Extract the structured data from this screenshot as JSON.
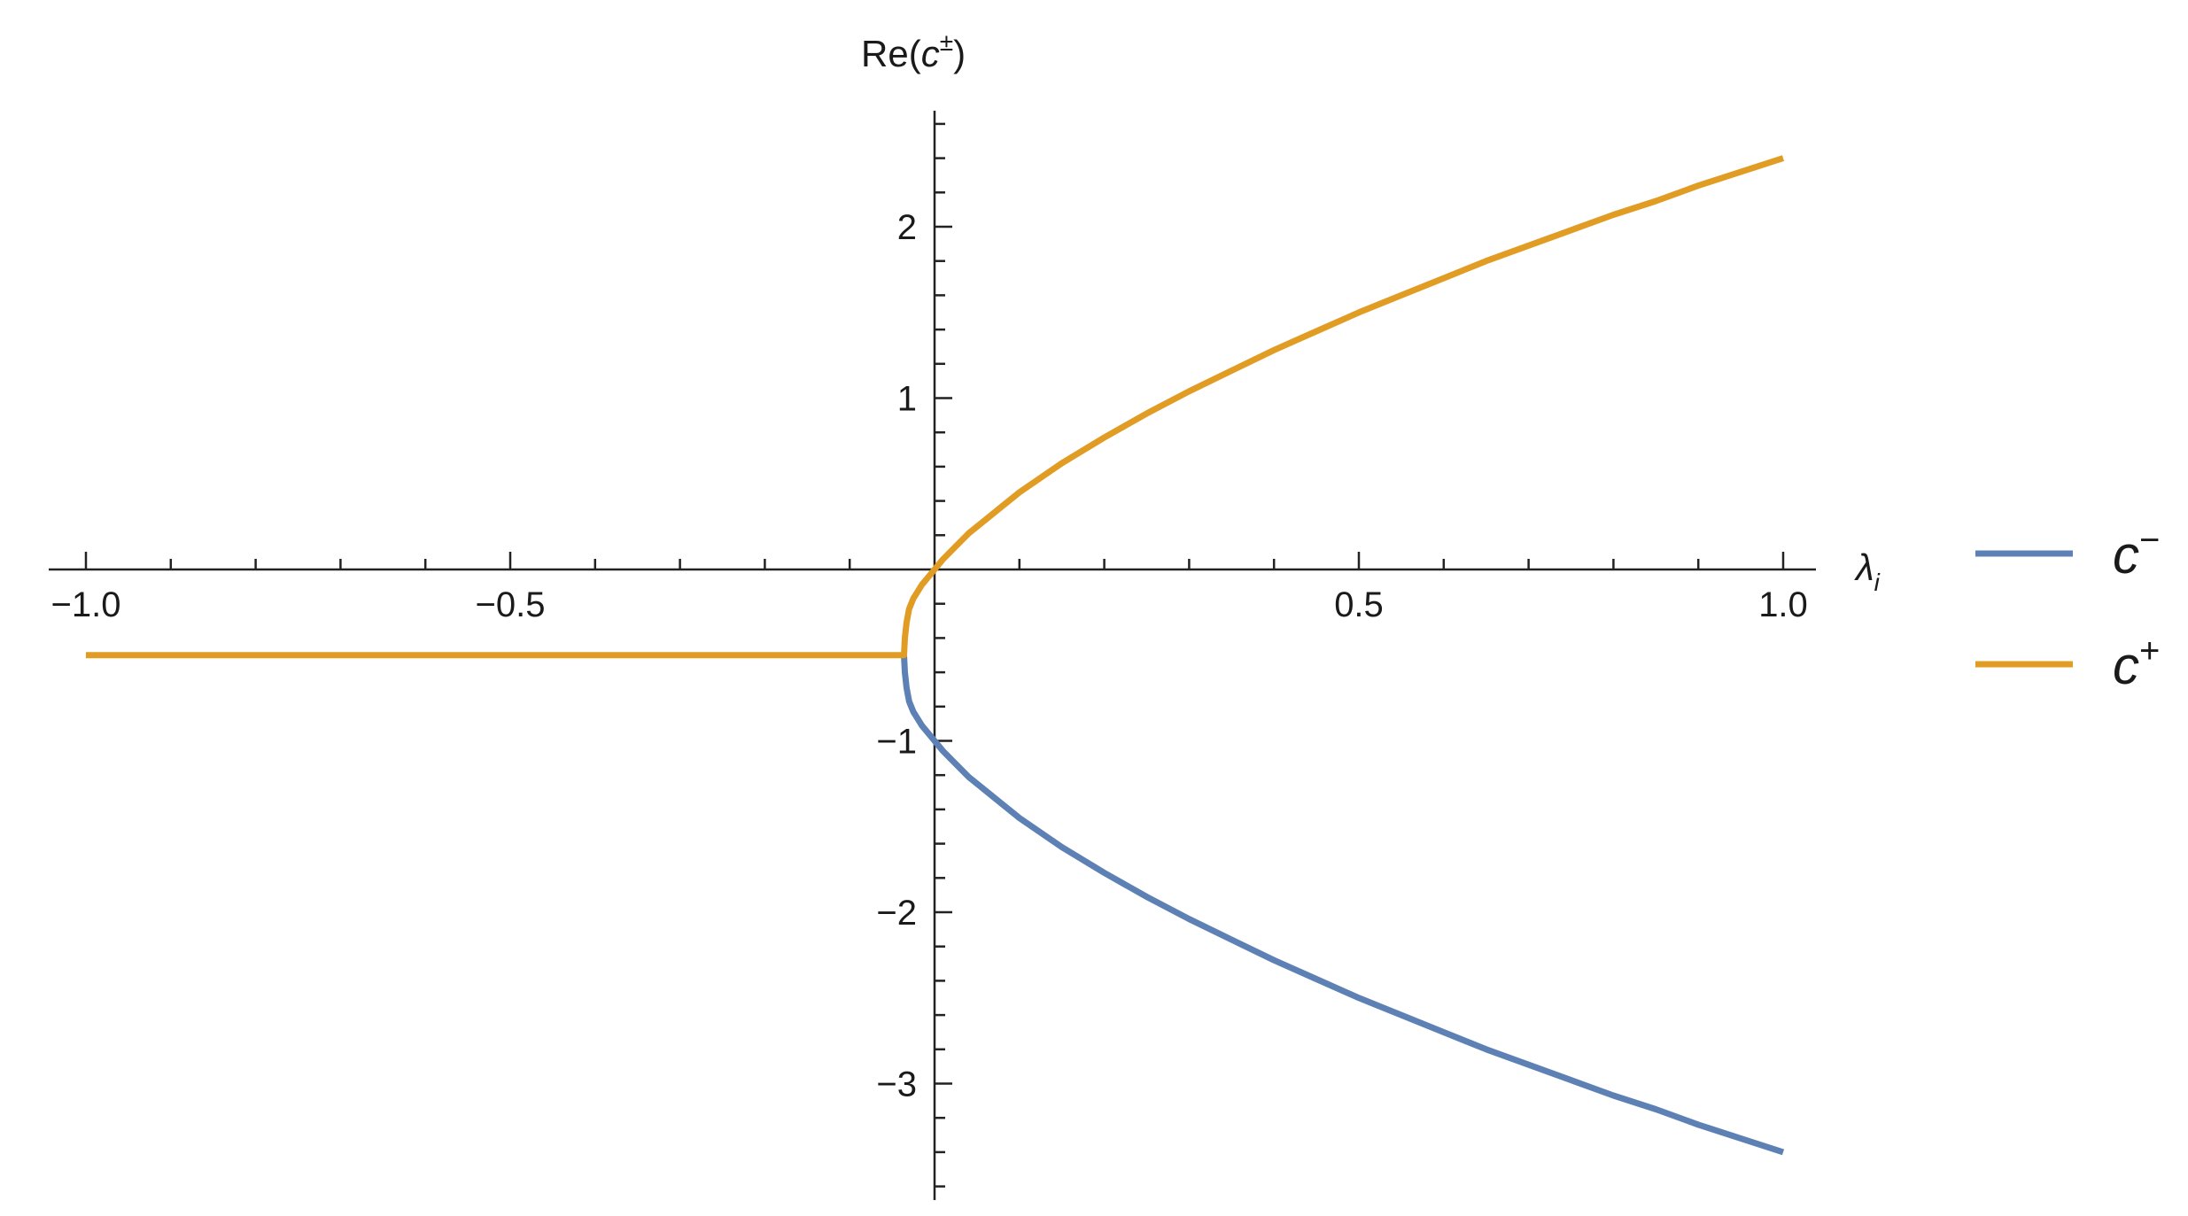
{
  "chart_data": {
    "type": "line",
    "xlabel": "λ",
    "xlabel_sub": "i",
    "ylabel": "Re(c±)",
    "ylabel_prefix": "Re(",
    "ylabel_var": "c",
    "ylabel_sup": "±",
    "ylabel_suffix": ")",
    "xlim": [
      -1.0,
      1.0
    ],
    "ylim": [
      -3.6,
      2.6
    ],
    "x_ticks": [
      {
        "value": -1.0,
        "label": "−1.0"
      },
      {
        "value": -0.5,
        "label": "−0.5"
      },
      {
        "value": 0.5,
        "label": "0.5"
      },
      {
        "value": 1.0,
        "label": "1.0"
      }
    ],
    "y_ticks": [
      {
        "value": -3,
        "label": "−3"
      },
      {
        "value": -2,
        "label": "−2"
      },
      {
        "value": -1,
        "label": "−1"
      },
      {
        "value": 1,
        "label": "1"
      },
      {
        "value": 2,
        "label": "2"
      }
    ],
    "grid": false,
    "legend_position": "right",
    "series": [
      {
        "name": "c−",
        "name_var": "c",
        "name_sup": "−",
        "color": "#5e81b5",
        "x": [
          -0.036,
          -0.035,
          -0.033,
          -0.03,
          -0.025,
          -0.02,
          -0.015,
          -0.01,
          -0.005,
          0.0,
          0.01,
          0.02,
          0.04,
          0.06,
          0.08,
          0.1,
          0.15,
          0.2,
          0.25,
          0.3,
          0.35,
          0.4,
          0.45,
          0.5,
          0.55,
          0.6,
          0.65,
          0.7,
          0.75,
          0.8,
          0.85,
          0.9,
          0.95,
          1.0
        ],
        "y": [
          -0.5,
          -0.6,
          -0.69,
          -0.77,
          -0.83,
          -0.87,
          -0.91,
          -0.94,
          -0.97,
          -1.0,
          -1.06,
          -1.11,
          -1.21,
          -1.29,
          -1.37,
          -1.45,
          -1.62,
          -1.77,
          -1.91,
          -2.04,
          -2.16,
          -2.28,
          -2.39,
          -2.5,
          -2.6,
          -2.7,
          -2.8,
          -2.89,
          -2.98,
          -3.07,
          -3.15,
          -3.24,
          -3.32,
          -3.4
        ]
      },
      {
        "name": "c+",
        "name_var": "c",
        "name_sup": "+",
        "color": "#e19c24",
        "x": [
          -1.0,
          -0.9,
          -0.8,
          -0.7,
          -0.6,
          -0.5,
          -0.4,
          -0.3,
          -0.2,
          -0.1,
          -0.036,
          -0.035,
          -0.033,
          -0.03,
          -0.025,
          -0.02,
          -0.015,
          -0.01,
          -0.005,
          0.0,
          0.01,
          0.02,
          0.04,
          0.06,
          0.08,
          0.1,
          0.15,
          0.2,
          0.25,
          0.3,
          0.35,
          0.4,
          0.45,
          0.5,
          0.55,
          0.6,
          0.65,
          0.7,
          0.75,
          0.8,
          0.85,
          0.9,
          0.95,
          1.0
        ],
        "y": [
          -0.5,
          -0.5,
          -0.5,
          -0.5,
          -0.5,
          -0.5,
          -0.5,
          -0.5,
          -0.5,
          -0.5,
          -0.5,
          -0.4,
          -0.31,
          -0.23,
          -0.17,
          -0.13,
          -0.09,
          -0.06,
          -0.03,
          0.0,
          0.06,
          0.11,
          0.21,
          0.29,
          0.37,
          0.45,
          0.62,
          0.77,
          0.91,
          1.04,
          1.16,
          1.28,
          1.39,
          1.5,
          1.6,
          1.7,
          1.8,
          1.89,
          1.98,
          2.07,
          2.15,
          2.24,
          2.32,
          2.4
        ]
      }
    ]
  }
}
